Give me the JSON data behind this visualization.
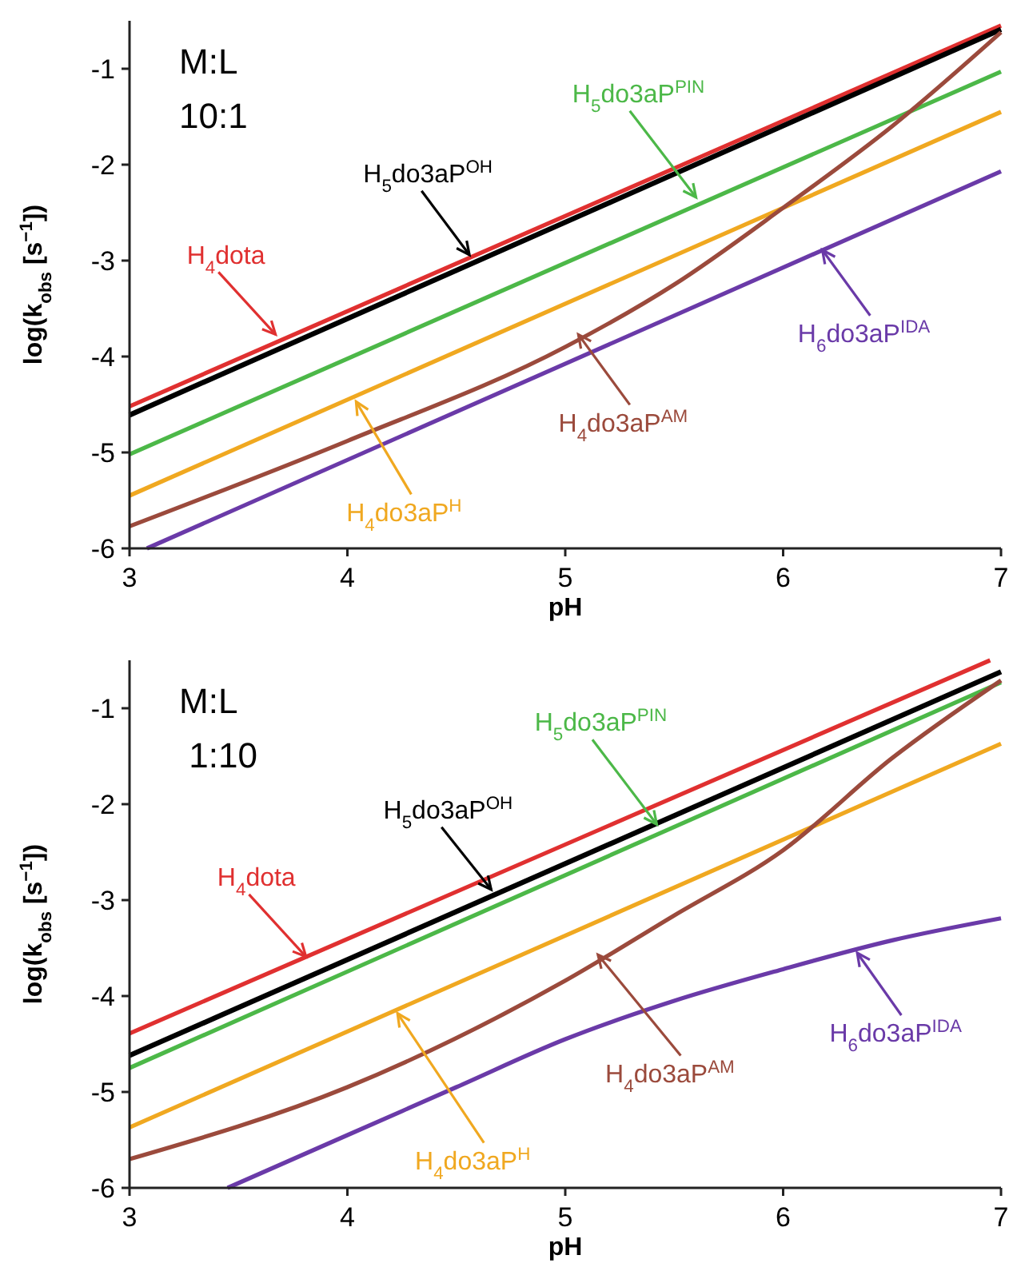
{
  "chart_data": [
    {
      "type": "line",
      "xlabel": "pH",
      "ylabel": "log(k$_{obs}$ [s$^{−1}$])",
      "xlim": [
        3,
        7
      ],
      "ylim": [
        -6,
        -0.5
      ],
      "xticks": [
        3,
        4,
        5,
        6,
        7
      ],
      "yticks": [
        -6,
        -5,
        -4,
        -3,
        -2,
        -1
      ],
      "annotations": [
        "M:L\n10:1",
        {
          "text": "H$_{4}$dota",
          "x": 3.67,
          "y": -3.77
        },
        {
          "text": "H$_{5}$do3aP$^{OH}$",
          "x": 4.56,
          "y": -2.94
        },
        {
          "text": "H$_{5}$do3aP$^{PIN}$",
          "x": 5.6,
          "y": -2.34
        },
        {
          "text": "H$_{4}$do3aP$^{H}$",
          "x": 4.04,
          "y": -4.47
        },
        {
          "text": "H$_{4}$do3aP$^{AM}$",
          "x": 5.06,
          "y": -3.77
        },
        {
          "text": "H$_{6}$do3aP$^{IDA}$",
          "x": 6.18,
          "y": -2.89
        }
      ],
      "series": [
        {
          "color": "#e03030",
          "x": [
            3,
            7
          ],
          "values": [
            -4.52,
            -0.55
          ]
        },
        {
          "color": "#000000",
          "x": [
            3,
            7
          ],
          "values": [
            -4.61,
            -0.59
          ]
        },
        {
          "color": "#4cb848",
          "x": [
            3,
            7
          ],
          "values": [
            -5.02,
            -1.03
          ]
        },
        {
          "color": "#f0a820",
          "x": [
            3,
            7
          ],
          "values": [
            -5.45,
            -1.45
          ]
        },
        {
          "color": "#9b4a3c",
          "x": [
            3,
            4,
            5,
            5.5,
            6,
            6.5,
            7
          ],
          "values": [
            -5.77,
            -4.88,
            -3.9,
            -3.25,
            -2.45,
            -1.6,
            -0.62
          ]
        },
        {
          "color": "#6a3aa8",
          "x": [
            3.08,
            7
          ],
          "values": [
            -6,
            -2.07
          ]
        }
      ]
    },
    {
      "type": "line",
      "xlabel": "pH",
      "ylabel": "log(k$_{obs}$ [s$^{−1}$])",
      "xlim": [
        3,
        7
      ],
      "ylim": [
        -6,
        -0.5
      ],
      "xticks": [
        3,
        4,
        5,
        6,
        7
      ],
      "yticks": [
        -6,
        -5,
        -4,
        -3,
        -2,
        -1
      ],
      "annotations": [
        "M:L\n 1:10",
        {
          "text": "H$_{4}$dota",
          "x": 3.81,
          "y": -3.59
        },
        {
          "text": "H$_{5}$do3aP$^{OH}$",
          "x": 4.66,
          "y": -2.89
        },
        {
          "text": "H$_{5}$do3aP$^{PIN}$",
          "x": 5.42,
          "y": -2.21
        },
        {
          "text": "H$_{4}$do3aP$^{H}$",
          "x": 4.23,
          "y": -4.18
        },
        {
          "text": "H$_{4}$do3aP$^{AM}$",
          "x": 5.15,
          "y": -3.57
        },
        {
          "text": "H$_{6}$do3aP$^{IDA}$",
          "x": 6.34,
          "y": -3.55
        }
      ],
      "series": [
        {
          "color": "#e03030",
          "x": [
            3,
            6.95
          ],
          "values": [
            -4.39,
            -0.5
          ]
        },
        {
          "color": "#000000",
          "x": [
            3,
            7
          ],
          "values": [
            -4.62,
            -0.62
          ]
        },
        {
          "color": "#4cb848",
          "x": [
            3,
            7
          ],
          "values": [
            -4.75,
            -0.73
          ]
        },
        {
          "color": "#f0a820",
          "x": [
            3,
            7
          ],
          "values": [
            -5.37,
            -1.37
          ]
        },
        {
          "color": "#9b4a3c",
          "x": [
            3,
            4,
            5,
            5.5,
            6,
            6.5,
            7
          ],
          "values": [
            -5.7,
            -4.95,
            -3.84,
            -3.16,
            -2.48,
            -1.52,
            -0.71
          ]
        },
        {
          "color": "#6a3aa8",
          "x": [
            3.45,
            4,
            4.5,
            5,
            5.5,
            6,
            6.5,
            7
          ],
          "values": [
            -6,
            -5.45,
            -4.95,
            -4.45,
            -4.05,
            -3.72,
            -3.42,
            -3.19
          ]
        }
      ]
    }
  ]
}
